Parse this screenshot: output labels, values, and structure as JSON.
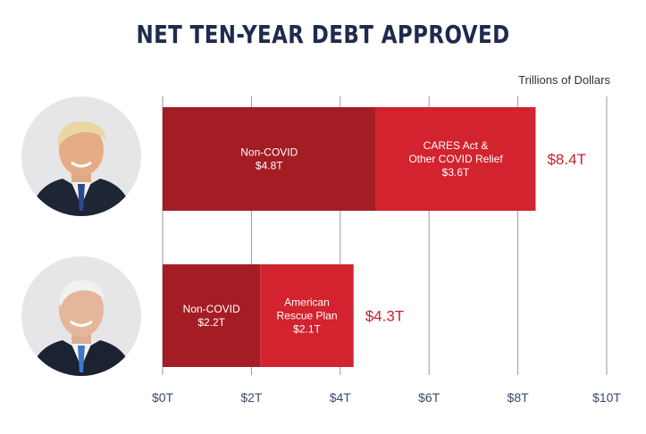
{
  "title": "NET TEN-YEAR DEBT APPROVED",
  "units_label": "Trillions of Dollars",
  "colors": {
    "dark_red": "#a51d24",
    "light_red": "#d2232e",
    "total_label": "#c8202a",
    "axis_text": "#3c4a70",
    "title": "#1f2a4d"
  },
  "chart_data": {
    "type": "bar",
    "orientation": "horizontal",
    "stacked": true,
    "title": "NET TEN-YEAR DEBT APPROVED",
    "xlabel": "Trillions of Dollars",
    "xlim": [
      0,
      10
    ],
    "x_ticks": [
      0,
      2,
      4,
      6,
      8,
      10
    ],
    "x_tick_labels": [
      "$0T",
      "$2T",
      "$4T",
      "$6T",
      "$8T",
      "$10T"
    ],
    "grid": true,
    "bars": [
      {
        "id": "trump",
        "portrait": "trump-portrait",
        "total": 8.4,
        "total_label": "$8.4T",
        "segments": [
          {
            "name": "Non-COVID",
            "value": 4.8,
            "value_label": "$4.8T",
            "color": "#a51d24",
            "label_lines": [
              "Non-COVID"
            ]
          },
          {
            "name": "CARES Act & Other COVID Relief",
            "value": 3.6,
            "value_label": "$3.6T",
            "color": "#d2232e",
            "label_lines": [
              "CARES Act &",
              "Other COVID Relief"
            ]
          }
        ]
      },
      {
        "id": "biden",
        "portrait": "biden-portrait",
        "total": 4.3,
        "total_label": "$4.3T",
        "segments": [
          {
            "name": "Non-COVID",
            "value": 2.2,
            "value_label": "$2.2T",
            "color": "#a51d24",
            "label_lines": [
              "Non-COVID"
            ]
          },
          {
            "name": "American Rescue Plan",
            "value": 2.1,
            "value_label": "$2.1T",
            "color": "#d2232e",
            "label_lines": [
              "American",
              "Rescue Plan"
            ]
          }
        ]
      }
    ]
  }
}
